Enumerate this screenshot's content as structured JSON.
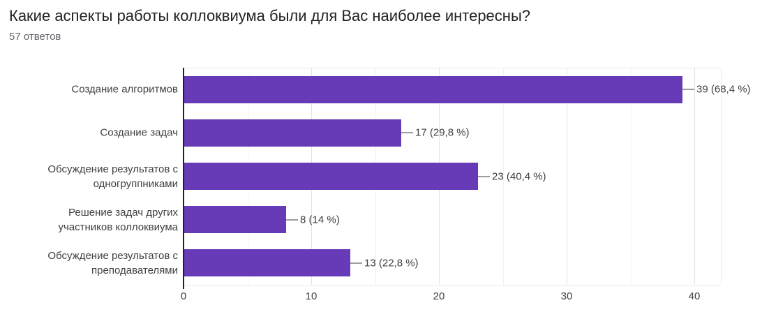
{
  "header": {
    "title": "Какие аспекты работы коллоквиума были для Вас наиболее интересны?",
    "subtitle": "57 ответов"
  },
  "chart_data": {
    "type": "bar",
    "orientation": "horizontal",
    "title": "Какие аспекты работы коллоквиума были для Вас наиболее интересны?",
    "subtitle": "57 ответов",
    "total_responses": 57,
    "categories": [
      "Создание алгоритмов",
      "Создание задач",
      "Обсуждение результатов с одногруппниками",
      "Решение задач других участников коллоквиума",
      "Обсуждение результатов с преподавателями"
    ],
    "category_lines": [
      [
        "Создание алгоритмов"
      ],
      [
        "Создание задач"
      ],
      [
        "Обсуждение результатов с",
        "одногруппниками"
      ],
      [
        "Решение задач других",
        "участников коллоквиума"
      ],
      [
        "Обсуждение результатов с",
        "преподавателями"
      ]
    ],
    "values": [
      39,
      17,
      23,
      8,
      13
    ],
    "percentages": [
      68.4,
      29.8,
      40.4,
      14,
      22.8
    ],
    "value_labels": [
      "39 (68,4 %)",
      "17 (29,8 %)",
      "23 (40,4 %)",
      "8 (14 %)",
      "13 (22,8 %)"
    ],
    "x_ticks": [
      0,
      10,
      20,
      30,
      40
    ],
    "x_tick_labels": [
      "0",
      "10",
      "20",
      "30",
      "40"
    ],
    "xlim": [
      0,
      42
    ],
    "grid": "vertical gridlines, minor every 5, major every 10",
    "legend": "none",
    "colors": {
      "bar": "#673ab7",
      "axis_line": "#212121",
      "grid_major": "#e3e3e3",
      "grid_minor": "#f2f2f2",
      "plot_border": "#ececec",
      "connector": "#9e9e9e",
      "title_text": "#212121",
      "subtitle_text": "#5f6368",
      "category_text": "#404040",
      "tick_text": "#424242",
      "background": "#ffffff"
    }
  }
}
